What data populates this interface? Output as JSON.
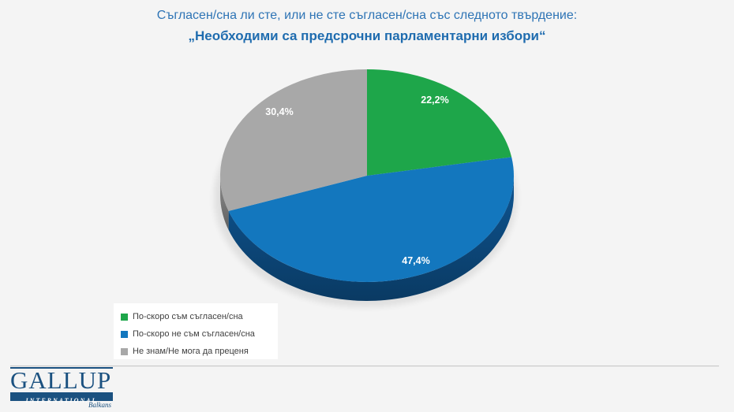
{
  "title": {
    "line1": "Съгласен/сна ли сте, или не сте съгласен/сна със следното твърдение:",
    "line2": "„Необходими са предсрочни парламентарни избори“",
    "color": "#2E74B5"
  },
  "chart_data": {
    "type": "pie",
    "style": "3d",
    "title": "Съгласен/сна ли сте, или не сте съгласен/сна със следното твърдение:",
    "subtitle": "„Необходими са предсрочни парламентарни избори“",
    "direction": "clockwise",
    "start_angle_deg": 0,
    "data_labels": "percent-on-slice",
    "data_label_color": "#FFFFFF",
    "legend_position": "bottom-left",
    "slices": [
      {
        "label": "По-скоро съм съгласен/сна",
        "value": 22.2,
        "display": "22,2%",
        "color": "#1EA64A",
        "side_color": "#0F7A36"
      },
      {
        "label": "По-скоро не съм съгласен/сна",
        "value": 47.4,
        "display": "47,4%",
        "color": "#1377BE",
        "side_color": "#0E5592"
      },
      {
        "label": "Не знам/Не мога да преценя",
        "value": 30.4,
        "display": "30,4%",
        "color": "#A8A8A8",
        "side_color": "#8D8D8D"
      }
    ]
  },
  "footer": {
    "logo": {
      "name": "GALLUP",
      "subtitle": "INTERNATIONAL",
      "region": "Balkans",
      "color": "#1B5180"
    }
  }
}
